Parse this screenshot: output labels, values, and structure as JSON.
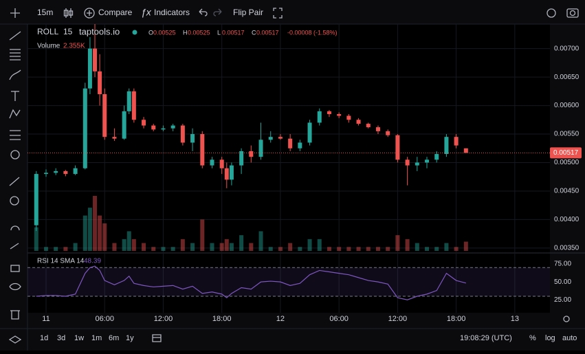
{
  "toolbar": {
    "interval": "15m",
    "compare": "Compare",
    "indicators": "Indicators",
    "flip": "Flip Pair"
  },
  "legend": {
    "symbol": "ROLL",
    "interval": "15",
    "source": "taptools.io",
    "o": "O",
    "h": "H",
    "l": "L",
    "c": "C",
    "change": "-0.00008 (-1.58%)",
    "volume": "Volume",
    "volume_label": "2.355K",
    "rsi": "RSI 14 SMA 14"
  },
  "bottom": {
    "ranges": [
      "1d",
      "3d",
      "1w",
      "1m",
      "6m",
      "1y"
    ],
    "clock": "19:08:29 (UTC)",
    "percent": "%",
    "log": "log",
    "auto": "auto"
  },
  "chart_data": {
    "type": "candlestick",
    "up_color": "#26a69a",
    "down_color": "#ef5350",
    "rsi_color": "#7e57c2",
    "x": [
      -1,
      0,
      1,
      2,
      3,
      4,
      4.5,
      5,
      5.5,
      6,
      7,
      8,
      8.5,
      9,
      10,
      11,
      12,
      13,
      14,
      15,
      16,
      17,
      18,
      18.5,
      19,
      20,
      21,
      22,
      23,
      24,
      25,
      26,
      27,
      28,
      29,
      30,
      31,
      32,
      33,
      34,
      35,
      36,
      37,
      38,
      39,
      40,
      41,
      42,
      43
    ],
    "open": [
      0.0039,
      0.0048,
      0.00482,
      0.00485,
      0.0048,
      0.0049,
      0.0063,
      0.007,
      0.0066,
      0.0062,
      0.00545,
      0.00542,
      0.0059,
      0.00625,
      0.00575,
      0.00565,
      0.00558,
      0.0056,
      0.00565,
      0.00535,
      0.0055,
      0.00495,
      0.00505,
      0.0049,
      0.0047,
      0.00495,
      0.0052,
      0.0051,
      0.0054,
      0.00545,
      0.00542,
      0.00525,
      0.00535,
      0.0057,
      0.0059,
      0.00585,
      0.00582,
      0.00575,
      0.00568,
      0.00562,
      0.00555,
      0.00548,
      0.00505,
      0.00495,
      0.005,
      0.00505,
      0.00515,
      0.00545,
      0.00525
    ],
    "high": [
      0.00485,
      0.00488,
      0.0049,
      0.00487,
      0.00495,
      0.0064,
      0.0072,
      0.00743,
      0.0069,
      0.0063,
      0.0056,
      0.006,
      0.0063,
      0.0063,
      0.0058,
      0.00568,
      0.00565,
      0.00568,
      0.00568,
      0.0056,
      0.00555,
      0.0051,
      0.0051,
      0.005,
      0.005,
      0.00525,
      0.0053,
      0.0057,
      0.00555,
      0.0055,
      0.0055,
      0.0054,
      0.00575,
      0.00595,
      0.00592,
      0.00588,
      0.00585,
      0.00578,
      0.0057,
      0.00565,
      0.00558,
      0.0055,
      0.0051,
      0.0051,
      0.0051,
      0.0052,
      0.0055,
      0.0055,
      0.00525
    ],
    "low": [
      0.0038,
      0.00475,
      0.00478,
      0.00476,
      0.00478,
      0.00488,
      0.0062,
      0.0065,
      0.006,
      0.0054,
      0.00538,
      0.0054,
      0.00585,
      0.0057,
      0.0056,
      0.00555,
      0.00555,
      0.00555,
      0.0053,
      0.0052,
      0.0049,
      0.0049,
      0.0048,
      0.00455,
      0.0046,
      0.0048,
      0.005,
      0.00505,
      0.00535,
      0.0054,
      0.0052,
      0.0052,
      0.0053,
      0.00565,
      0.0058,
      0.00578,
      0.0057,
      0.00565,
      0.0056,
      0.0055,
      0.00545,
      0.005,
      0.0046,
      0.00485,
      0.0049,
      0.005,
      0.0051,
      0.00525,
      0.00517
    ],
    "close": [
      0.0048,
      0.00482,
      0.00485,
      0.0048,
      0.0049,
      0.0063,
      0.007,
      0.0066,
      0.0062,
      0.00545,
      0.00542,
      0.0059,
      0.00625,
      0.00575,
      0.00565,
      0.00558,
      0.0056,
      0.00565,
      0.00535,
      0.0055,
      0.00495,
      0.00505,
      0.0049,
      0.0047,
      0.00495,
      0.0052,
      0.0051,
      0.0054,
      0.00545,
      0.00542,
      0.00525,
      0.00535,
      0.0057,
      0.0059,
      0.00585,
      0.00582,
      0.00575,
      0.00568,
      0.00562,
      0.00555,
      0.00548,
      0.00505,
      0.00495,
      0.005,
      0.00505,
      0.00515,
      0.00545,
      0.0053,
      0.00517
    ],
    "volume": [
      6000,
      1000,
      1000,
      1000,
      2000,
      9000,
      11000,
      14000,
      9000,
      7000,
      2000,
      3000,
      5000,
      3000,
      2000,
      1000,
      1000,
      1000,
      3000,
      2000,
      8000,
      2000,
      2000,
      3000,
      2000,
      4000,
      2000,
      5000,
      1000,
      1000,
      2000,
      1000,
      3000,
      3000,
      1000,
      1000,
      1000,
      1000,
      1000,
      1000,
      1000,
      4000,
      3000,
      2000,
      1000,
      1000,
      2000,
      1000,
      2355
    ],
    "rsi": [
      30,
      31,
      31,
      30,
      33,
      62,
      70,
      72,
      66,
      52,
      46,
      52,
      58,
      48,
      45,
      43,
      44,
      45,
      40,
      44,
      34,
      36,
      33,
      28,
      34,
      42,
      40,
      50,
      51,
      50,
      45,
      48,
      60,
      66,
      64,
      62,
      60,
      56,
      52,
      50,
      47,
      28,
      25,
      30,
      33,
      38,
      62,
      52,
      48.39
    ],
    "xlim": [
      -1.9,
      51.6
    ],
    "xticks": [
      {
        "value": 0,
        "label": "11"
      },
      {
        "value": 6,
        "label": "06:00"
      },
      {
        "value": 12,
        "label": "12:00"
      },
      {
        "value": 18,
        "label": "18:00"
      },
      {
        "value": 24,
        "label": "12"
      },
      {
        "value": 30,
        "label": "06:00"
      },
      {
        "value": 36,
        "label": "12:00"
      },
      {
        "value": 42,
        "label": "18:00"
      },
      {
        "value": 48,
        "label": "13"
      }
    ],
    "ylim": [
      0.00345,
      0.00743
    ],
    "yticks": [
      {
        "value": 0.0035,
        "label": "0.00350"
      },
      {
        "value": 0.004,
        "label": "0.00400"
      },
      {
        "value": 0.0045,
        "label": "0.00450"
      },
      {
        "value": 0.005,
        "label": "0.00500"
      },
      {
        "value": 0.0055,
        "label": "0.00550"
      },
      {
        "value": 0.006,
        "label": "0.00600"
      },
      {
        "value": 0.0065,
        "label": "0.00650"
      },
      {
        "value": 0.007,
        "label": "0.00700"
      }
    ],
    "rsi_ylim": [
      7,
      87.5
    ],
    "rsi_yticks": [
      {
        "value": 25,
        "label": "25.00"
      },
      {
        "value": 50,
        "label": "50.00"
      },
      {
        "value": 75,
        "label": "75.00"
      }
    ],
    "rsi_bands": [
      30,
      70
    ]
  }
}
